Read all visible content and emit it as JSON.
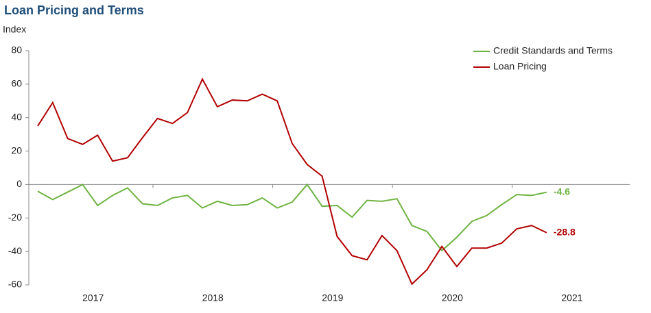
{
  "chart_data": {
    "type": "line",
    "title": "Loan Pricing and Terms",
    "y_label": "Index",
    "x_labels": [
      "2017",
      "2018",
      "2019",
      "2020",
      "2021"
    ],
    "series": [
      {
        "name": "Credit Standards and Terms",
        "color": "#6db33f",
        "values": [
          -4,
          -9,
          -4.5,
          0,
          -12.5,
          -6.5,
          -2,
          -11.5,
          -12.5,
          -8,
          -6.5,
          -14,
          -10,
          -12.5,
          -12,
          -8,
          -14,
          -10.5,
          0,
          -13,
          -12.5,
          -19.5,
          -9.5,
          -10,
          -8.5,
          -24.5,
          -28,
          -39.5,
          -31.5,
          -22,
          -18.5,
          -12,
          -6,
          -6.5,
          -4.6
        ]
      },
      {
        "name": "Loan Pricing",
        "color": "#b20000",
        "values": [
          35,
          49,
          27.5,
          24,
          29.5,
          14,
          16,
          28,
          39.5,
          36.5,
          43,
          63,
          46.5,
          50.5,
          50,
          54,
          50,
          24.5,
          12,
          5,
          -31,
          -42.5,
          -45,
          -30.5,
          -39.5,
          -59.5,
          -51,
          -37,
          -49,
          -38,
          -38,
          -35,
          -26.5,
          -24.5,
          -28.8
        ]
      }
    ],
    "ylim": [
      -60,
      80
    ],
    "yticks": [
      -60,
      -40,
      -20,
      0,
      20,
      40,
      60,
      80
    ],
    "legend": "top-right"
  }
}
